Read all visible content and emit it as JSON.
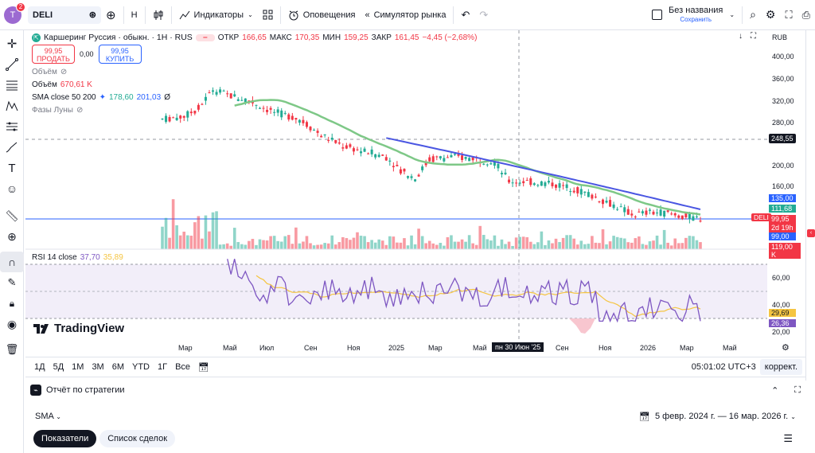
{
  "topbar": {
    "avatar_letter": "T",
    "notification_count": "2",
    "symbol": "DELI",
    "interval": "H",
    "indicators_label": "Индикаторы",
    "alerts_label": "Оповещения",
    "replay_label": "Симулятор рынка",
    "layout_name": "Без названия",
    "layout_status": "Сохранить"
  },
  "legend": {
    "title": "Каршеринг Руссия · обыкн. · 1Н · RUS",
    "open_label": "ОТКР",
    "open": "166,65",
    "high_label": "МАКС",
    "high": "170,35",
    "low_label": "МИН",
    "low": "159,25",
    "close_label": "ЗАКР",
    "close": "161,45",
    "change": "−4,45 (−2,68%)",
    "sell_price": "99,95",
    "sell_label": "ПРОДАТЬ",
    "spread": "0,00",
    "buy_price": "99,95",
    "buy_label": "КУПИТЬ",
    "volume1_label": "Объём",
    "volume2_label": "Объём",
    "volume2_value": "670,61 K",
    "sma_label": "SMA close 50 200",
    "sma_50": "178,60",
    "sma_200": "201,03",
    "sma_sym": "Ø",
    "moon_label": "Фазы Луны"
  },
  "chart_header": {
    "currency": "RUB"
  },
  "price_scale": {
    "ticks": [
      "400,00",
      "360,00",
      "320,00",
      "280,00",
      "200,00",
      "160,00",
      "119,00 K",
      "60,00",
      "40,00",
      "20,00"
    ],
    "crosshair_price": "248,55",
    "sma200_tag": "135,00",
    "sma50_tag": "111,68",
    "last_tag_symbol": "DELI",
    "last_price": "99,95",
    "countdown": "2d 19h",
    "line_price": "99,00",
    "rsi_signal": "29,69",
    "rsi_value": "26,36"
  },
  "rsi": {
    "label": "RSI 14 close",
    "value": "37,70",
    "signal": "35,89"
  },
  "time_axis": {
    "labels": [
      "Мар",
      "Май",
      "Июл",
      "Сен",
      "Ноя",
      "2025",
      "Мар",
      "Май",
      "Сен",
      "Ноя",
      "2026",
      "Мар",
      "Май"
    ],
    "crosshair_date": "пн 30 Июн '25"
  },
  "ranges": {
    "items": [
      "1Д",
      "5Д",
      "1М",
      "3М",
      "6М",
      "YTD",
      "1Г",
      "Все"
    ],
    "clock": "05:01:02 UTC+3",
    "adjust": "коррект."
  },
  "bottom": {
    "panel_title": "Отчёт по стратегии",
    "strategy": "SMA",
    "date_range": "5 февр. 2024 г. — 16 мар. 2026 г.",
    "tab_metrics": "Показатели",
    "tab_trades": "Список сделок"
  },
  "brand": {
    "logo_text": "TradingView"
  },
  "colors": {
    "up": "#22ab94",
    "down": "#f23645",
    "sma50": "#7ec887",
    "sma200": "#4a56e2",
    "rsi": "#7e57c2",
    "rsi_ma": "#f5c542",
    "price_line": "#2962ff"
  }
}
